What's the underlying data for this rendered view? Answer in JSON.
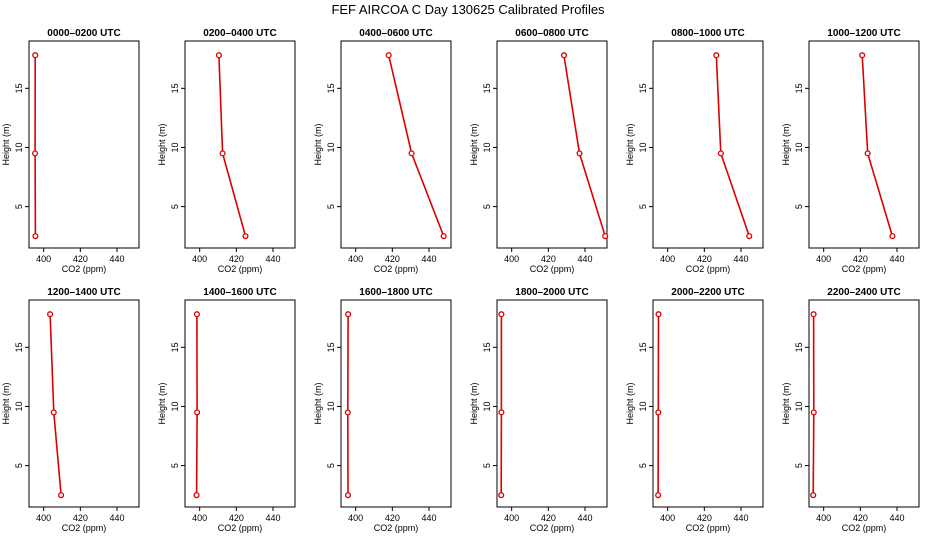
{
  "chart_data": {
    "type": "line",
    "title": "FEF AIRCOA C  Day 130625  Calibrated Profiles",
    "xlabel": "CO2 (ppm)",
    "ylabel": "Height (m)",
    "xlim": [
      392,
      452
    ],
    "ylim": [
      1.5,
      19
    ],
    "xticks": [
      400,
      420,
      440
    ],
    "yticks": [
      5,
      10,
      15
    ],
    "line_color": "#dd0000",
    "heights": [
      2.5,
      9.5,
      17.8
    ],
    "panels": [
      {
        "title": "0000–0200 UTC",
        "co2": [
          395.5,
          395.3,
          395.4
        ]
      },
      {
        "title": "0200–0400 UTC",
        "co2": [
          425.0,
          412.5,
          410.5
        ]
      },
      {
        "title": "0400–0600 UTC",
        "co2": [
          448.0,
          430.5,
          418.0
        ]
      },
      {
        "title": "0600–0800 UTC",
        "co2": [
          451.0,
          437.0,
          428.5
        ]
      },
      {
        "title": "0800–1000 UTC",
        "co2": [
          444.5,
          429.0,
          426.5
        ]
      },
      {
        "title": "1000–1200 UTC",
        "co2": [
          437.5,
          424.0,
          421.0
        ]
      },
      {
        "title": "1200–1400 UTC",
        "co2": [
          409.5,
          405.5,
          403.5
        ]
      },
      {
        "title": "1400–1600 UTC",
        "co2": [
          398.3,
          398.6,
          398.5
        ]
      },
      {
        "title": "1600–1800 UTC",
        "co2": [
          395.8,
          395.7,
          395.9
        ]
      },
      {
        "title": "1800–2000 UTC",
        "co2": [
          394.3,
          394.4,
          394.4
        ]
      },
      {
        "title": "2000–2200 UTC",
        "co2": [
          394.8,
          394.9,
          395.0
        ]
      },
      {
        "title": "2200–2400 UTC",
        "co2": [
          394.3,
          394.6,
          394.5
        ]
      }
    ]
  }
}
